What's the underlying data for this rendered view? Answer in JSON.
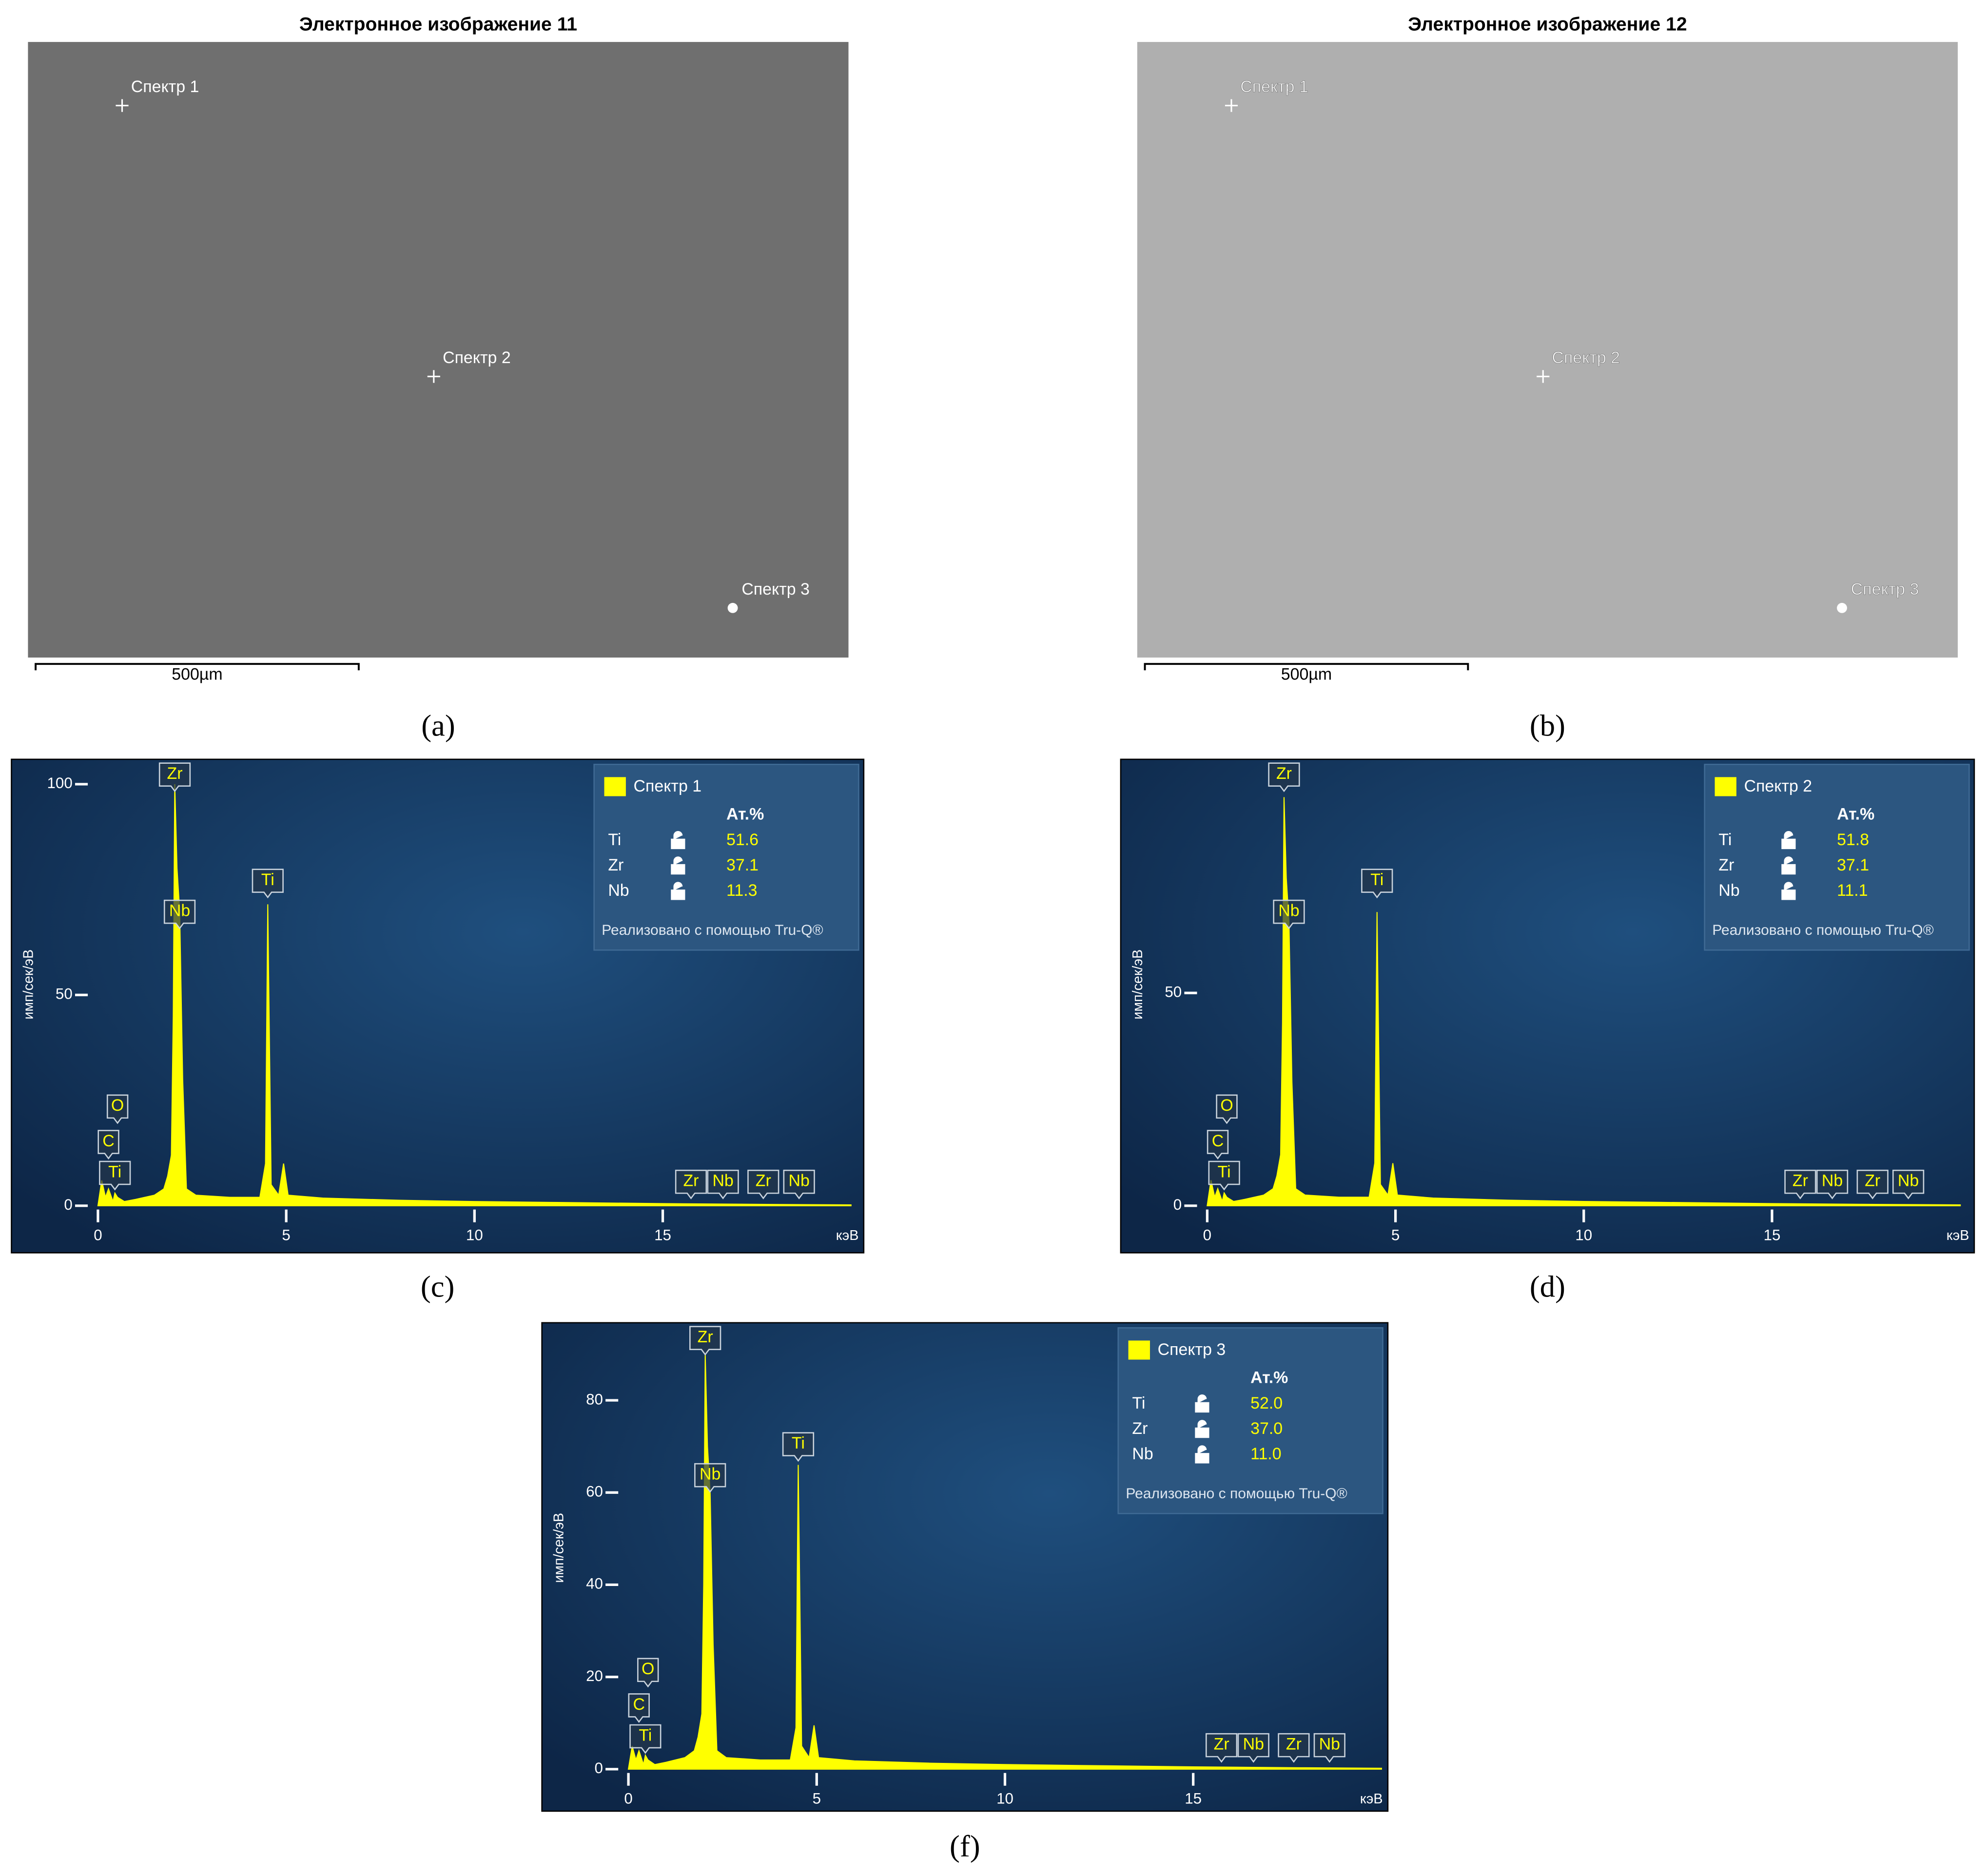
{
  "images": [
    {
      "title": "Электронное изображение 11",
      "label": "(a)",
      "spots": [
        "Спектр 1",
        "Спектр 2",
        "Спектр 3"
      ],
      "scale_bar": "500µm"
    },
    {
      "title": "Электронное изображение 12",
      "label": "(b)",
      "spots": [
        "Спектр 1",
        "Спектр 2",
        "Спектр 3"
      ],
      "scale_bar": "500µm"
    }
  ],
  "chart_data": [
    {
      "type": "line",
      "panel_label": "(c)",
      "x_label": "кэВ",
      "y_label": "имп/сек/эВ",
      "x": [
        0,
        0.1,
        0.2,
        0.28,
        0.4,
        0.45,
        0.52,
        0.7,
        1.0,
        1.5,
        1.75,
        1.85,
        1.95,
        2.0,
        2.04,
        2.1,
        2.17,
        2.25,
        2.35,
        2.6,
        3.5,
        4.3,
        4.45,
        4.51,
        4.6,
        4.8,
        4.93,
        5.05,
        6,
        8,
        10,
        12,
        15,
        18,
        20
      ],
      "series": [
        {
          "name": "Спектр 1",
          "color": "#ffff00",
          "values": [
            0,
            6,
            2,
            4,
            1,
            3,
            2,
            1,
            1.5,
            2.5,
            4,
            7,
            12,
            45,
            100,
            80,
            70,
            30,
            4,
            2.5,
            2,
            2,
            10,
            71.5,
            5,
            2.5,
            10,
            2.5,
            1.8,
            1.3,
            1,
            0.8,
            0.5,
            0.3,
            0.2
          ]
        }
      ],
      "xlim": [
        0,
        20
      ],
      "xticks": [
        0,
        5,
        10,
        15
      ],
      "ylim": [
        0,
        105
      ],
      "yticks": [
        0,
        50,
        100
      ],
      "annotations": [
        {
          "text": "Zr",
          "x": 2.04
        },
        {
          "text": "Nb",
          "x": 2.17
        },
        {
          "text": "Ti",
          "x": 4.51
        },
        {
          "text": "O",
          "x": 0.52
        },
        {
          "text": "C",
          "x": 0.28
        },
        {
          "text": "Ti",
          "x": 0.45
        },
        {
          "text": "Zr",
          "x": 15.75
        },
        {
          "text": "Nb",
          "x": 16.6
        },
        {
          "text": "Zr",
          "x": 17.67
        },
        {
          "text": "Nb",
          "x": 18.62
        }
      ],
      "legend": {
        "header": "Ат.%",
        "rows": [
          {
            "element": "Ti",
            "value": "51.6"
          },
          {
            "element": "Zr",
            "value": "37.1"
          },
          {
            "element": "Nb",
            "value": "11.3"
          }
        ],
        "footer": "Реализовано с помощью Tru-Q®"
      }
    },
    {
      "type": "line",
      "panel_label": "(d)",
      "x_label": "кэВ",
      "y_label": "имп/сек/эВ",
      "x": [
        0,
        0.1,
        0.2,
        0.28,
        0.4,
        0.45,
        0.52,
        0.7,
        1.0,
        1.5,
        1.75,
        1.85,
        1.95,
        2.0,
        2.04,
        2.1,
        2.17,
        2.25,
        2.35,
        2.6,
        3.5,
        4.3,
        4.45,
        4.51,
        4.6,
        4.8,
        4.93,
        5.05,
        6,
        8,
        10,
        12,
        15,
        18,
        20
      ],
      "series": [
        {
          "name": "Спектр 2",
          "color": "#ffff00",
          "values": [
            0,
            6,
            2,
            4,
            1,
            3,
            2,
            1,
            1.5,
            2.5,
            4,
            7,
            12,
            43,
            96,
            77,
            67,
            29,
            4,
            2.5,
            2,
            2,
            10,
            69,
            5,
            2.5,
            10,
            2.5,
            1.8,
            1.3,
            1,
            0.8,
            0.5,
            0.3,
            0.2
          ]
        }
      ],
      "xlim": [
        0,
        20
      ],
      "xticks": [
        0,
        5,
        10,
        15
      ],
      "ylim": [
        0,
        104
      ],
      "yticks": [
        0,
        50
      ],
      "annotations": [
        {
          "text": "Zr",
          "x": 2.04
        },
        {
          "text": "Nb",
          "x": 2.17
        },
        {
          "text": "Ti",
          "x": 4.51
        },
        {
          "text": "O",
          "x": 0.52
        },
        {
          "text": "C",
          "x": 0.28
        },
        {
          "text": "Ti",
          "x": 0.45
        },
        {
          "text": "Zr",
          "x": 15.75
        },
        {
          "text": "Nb",
          "x": 16.6
        },
        {
          "text": "Zr",
          "x": 17.67
        },
        {
          "text": "Nb",
          "x": 18.62
        }
      ],
      "legend": {
        "header": "Ат.%",
        "rows": [
          {
            "element": "Ti",
            "value": "51.8"
          },
          {
            "element": "Zr",
            "value": "37.1"
          },
          {
            "element": "Nb",
            "value": "11.1"
          }
        ],
        "footer": "Реализовано с помощью Tru-Q®"
      }
    },
    {
      "type": "line",
      "panel_label": "(f)",
      "x_label": "кэВ",
      "y_label": "имп/сек/эВ",
      "x": [
        0,
        0.1,
        0.2,
        0.28,
        0.4,
        0.45,
        0.52,
        0.7,
        1.0,
        1.5,
        1.75,
        1.85,
        1.95,
        2.0,
        2.04,
        2.1,
        2.17,
        2.25,
        2.35,
        2.6,
        3.5,
        4.3,
        4.45,
        4.51,
        4.6,
        4.8,
        4.93,
        5.05,
        6,
        8,
        10,
        12,
        15,
        18,
        20
      ],
      "series": [
        {
          "name": "Спектр 3",
          "color": "#ffff00",
          "values": [
            0,
            5,
            2,
            4,
            1,
            3,
            2,
            1,
            1.5,
            2.5,
            4,
            7,
            12,
            40,
            90,
            70,
            60,
            27,
            4,
            2.5,
            2,
            2,
            9,
            66,
            5,
            2.5,
            9.5,
            2.5,
            1.8,
            1.3,
            1,
            0.8,
            0.5,
            0.3,
            0.2
          ]
        }
      ],
      "xlim": [
        0,
        20
      ],
      "xticks": [
        0,
        5,
        10,
        15
      ],
      "ylim": [
        0,
        96
      ],
      "yticks": [
        0,
        20,
        40,
        60,
        80
      ],
      "annotations": [
        {
          "text": "Zr",
          "x": 2.04
        },
        {
          "text": "Nb",
          "x": 2.17
        },
        {
          "text": "Ti",
          "x": 4.51
        },
        {
          "text": "O",
          "x": 0.52
        },
        {
          "text": "C",
          "x": 0.28
        },
        {
          "text": "Ti",
          "x": 0.45
        },
        {
          "text": "Zr",
          "x": 15.75
        },
        {
          "text": "Nb",
          "x": 16.6
        },
        {
          "text": "Zr",
          "x": 17.67
        },
        {
          "text": "Nb",
          "x": 18.62
        }
      ],
      "legend": {
        "header": "Ат.%",
        "rows": [
          {
            "element": "Ti",
            "value": "52.0"
          },
          {
            "element": "Zr",
            "value": "37.0"
          },
          {
            "element": "Nb",
            "value": "11.0"
          }
        ],
        "footer": "Реализовано с помощью Tru-Q®"
      }
    }
  ]
}
